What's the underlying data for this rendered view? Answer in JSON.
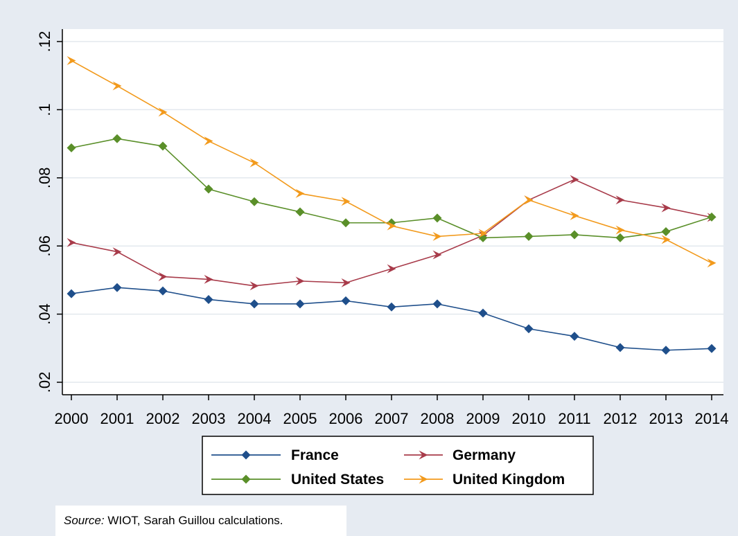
{
  "chart_data": {
    "type": "line",
    "categories": [
      "2000",
      "2001",
      "2002",
      "2003",
      "2004",
      "2005",
      "2006",
      "2007",
      "2008",
      "2009",
      "2010",
      "2011",
      "2012",
      "2013",
      "2014"
    ],
    "y_ticks": [
      ".02",
      ".04",
      ".06",
      ".08",
      ".1",
      ".12"
    ],
    "y_tick_values": [
      0.02,
      0.04,
      0.06,
      0.08,
      0.1,
      0.12
    ],
    "ylim": [
      0.02,
      0.12
    ],
    "grid": true,
    "legend_position": "bottom",
    "series": [
      {
        "name": "France",
        "color": "#1f4f8b",
        "values": [
          0.046,
          0.0478,
          0.0468,
          0.0443,
          0.043,
          0.043,
          0.0439,
          0.0421,
          0.043,
          0.0403,
          0.0357,
          0.0335,
          0.0302,
          0.0294,
          0.0299
        ]
      },
      {
        "name": "Germany",
        "color": "#a83b4a",
        "values": [
          0.061,
          0.0583,
          0.051,
          0.0502,
          0.0483,
          0.0497,
          0.0492,
          0.0533,
          0.0574,
          0.0631,
          0.0735,
          0.0795,
          0.0735,
          0.0712,
          0.0684
        ]
      },
      {
        "name": "United States",
        "color": "#5a8f29",
        "values": [
          0.0888,
          0.0915,
          0.0893,
          0.0767,
          0.073,
          0.07,
          0.0668,
          0.0668,
          0.0682,
          0.0624,
          0.0628,
          0.0633,
          0.0624,
          0.0642,
          0.0685
        ]
      },
      {
        "name": "United Kingdom",
        "color": "#f29a1c",
        "values": [
          0.1144,
          0.107,
          0.0993,
          0.0908,
          0.0844,
          0.0754,
          0.0731,
          0.0659,
          0.0628,
          0.0637,
          0.0735,
          0.0689,
          0.0647,
          0.0619,
          0.055
        ]
      }
    ]
  },
  "source": {
    "lead": "Source:",
    "text": " WIOT, Sarah Guillou calculations."
  }
}
